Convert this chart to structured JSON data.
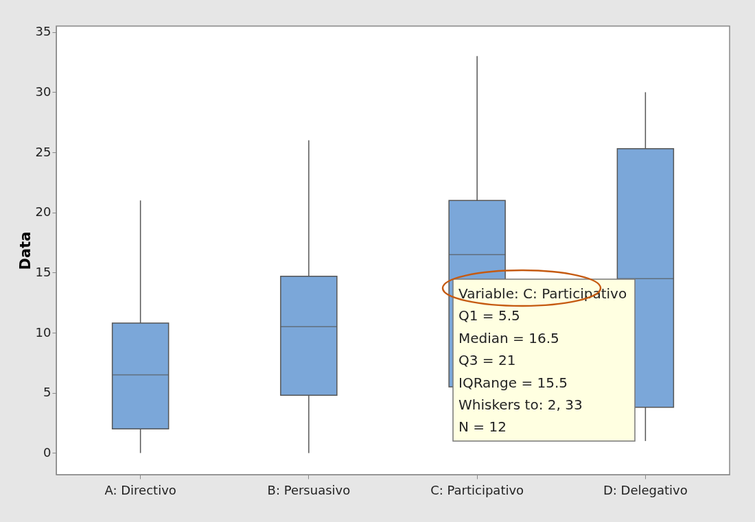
{
  "chart_data": {
    "type": "box",
    "ylabel": "Data",
    "categories": [
      "A: Directivo",
      "B: Persuasivo",
      "C: Participativo",
      "D: Delegativo"
    ],
    "series": [
      {
        "color": "#7ba7d9",
        "boxes": [
          {
            "low": 0,
            "q1": 2,
            "median": 6.5,
            "q3": 10.8,
            "high": 21
          },
          {
            "low": 0,
            "q1": 4.8,
            "median": 10.5,
            "q3": 14.7,
            "high": 26
          },
          {
            "low": 2,
            "q1": 5.5,
            "median": 16.5,
            "q3": 21,
            "high": 33
          },
          {
            "low": 1,
            "q1": 3.8,
            "median": 14.5,
            "q3": 25.3,
            "high": 30
          }
        ]
      }
    ],
    "ylim": [
      -1.8,
      35.5
    ],
    "yticks": [
      0,
      5,
      10,
      15,
      20,
      25,
      30,
      35
    ],
    "grid": false,
    "annotations": [
      "Variable: C: Participativo",
      "Q1 = 5.5",
      "Median = 16.5",
      "Q3 = 21",
      "IQRange = 15.5",
      "Whiskers to: 2, 33",
      "N = 12"
    ]
  }
}
